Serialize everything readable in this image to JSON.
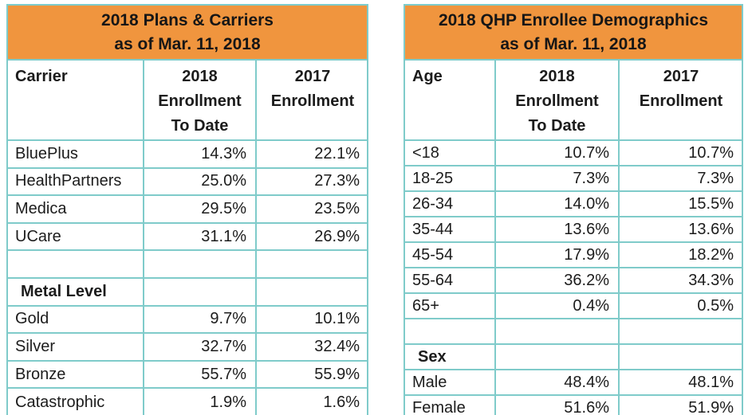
{
  "colors": {
    "header_bg": "#F0953E",
    "border": "#7FCBCA",
    "text": "#1C1C1C"
  },
  "tables": [
    {
      "name": "plans-and-carriers",
      "title": "2018 Plans & Carriers\nas of Mar. 11, 2018",
      "columns": [
        "Carrier",
        "2018\nEnrollment\nTo Date",
        "2017\nEnrollment"
      ],
      "rows": [
        {
          "type": "data",
          "cells": [
            "BluePlus",
            "14.3%",
            "22.1%"
          ]
        },
        {
          "type": "data",
          "cells": [
            "HealthPartners",
            "25.0%",
            "27.3%"
          ]
        },
        {
          "type": "data",
          "cells": [
            "Medica",
            "29.5%",
            "23.5%"
          ]
        },
        {
          "type": "data",
          "cells": [
            "UCare",
            "31.1%",
            "26.9%"
          ]
        },
        {
          "type": "blank",
          "cells": [
            "",
            "",
            ""
          ]
        },
        {
          "type": "section",
          "cells": [
            "Metal Level",
            "",
            ""
          ]
        },
        {
          "type": "data",
          "cells": [
            "Gold",
            "9.7%",
            "10.1%"
          ]
        },
        {
          "type": "data",
          "cells": [
            "Silver",
            "32.7%",
            "32.4%"
          ]
        },
        {
          "type": "data",
          "cells": [
            "Bronze",
            "55.7%",
            "55.9%"
          ]
        },
        {
          "type": "data",
          "cells": [
            "Catastrophic",
            "1.9%",
            "1.6%"
          ]
        }
      ]
    },
    {
      "name": "qhp-enrollee-demographics",
      "title": "2018 QHP Enrollee Demographics\nas of Mar. 11, 2018",
      "columns": [
        "Age",
        "2018\nEnrollment\nTo Date",
        "2017\nEnrollment"
      ],
      "rows": [
        {
          "type": "data",
          "cells": [
            "<18",
            "10.7%",
            "10.7%"
          ]
        },
        {
          "type": "data",
          "cells": [
            "18-25",
            "7.3%",
            "7.3%"
          ]
        },
        {
          "type": "data",
          "cells": [
            "26-34",
            "14.0%",
            "15.5%"
          ]
        },
        {
          "type": "data",
          "cells": [
            "35-44",
            "13.6%",
            "13.6%"
          ]
        },
        {
          "type": "data",
          "cells": [
            "45-54",
            "17.9%",
            "18.2%"
          ]
        },
        {
          "type": "data",
          "cells": [
            "55-64",
            "36.2%",
            "34.3%"
          ]
        },
        {
          "type": "data",
          "cells": [
            "65+",
            "0.4%",
            "0.5%"
          ]
        },
        {
          "type": "blank",
          "cells": [
            "",
            "",
            ""
          ]
        },
        {
          "type": "section",
          "cells": [
            "Sex",
            "",
            ""
          ]
        },
        {
          "type": "data",
          "cells": [
            "Male",
            "48.4%",
            "48.1%"
          ]
        },
        {
          "type": "data",
          "cells": [
            "Female",
            "51.6%",
            "51.9%"
          ]
        }
      ]
    }
  ]
}
